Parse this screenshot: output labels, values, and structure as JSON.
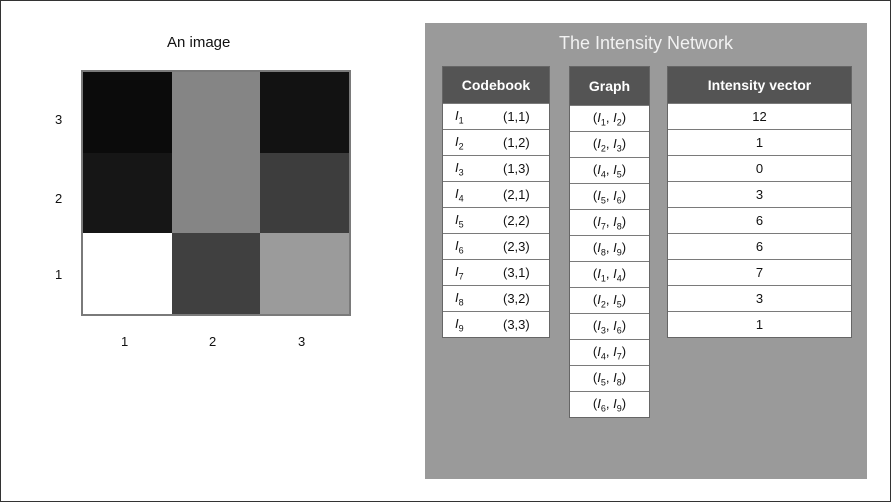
{
  "left": {
    "title": "An image",
    "y_labels": [
      "3",
      "2",
      "1"
    ],
    "x_labels": [
      "1",
      "2",
      "3"
    ],
    "cells": [
      {
        "row": 3,
        "col": 1,
        "color": "#0b0b0b"
      },
      {
        "row": 3,
        "col": 2,
        "color": "#858585"
      },
      {
        "row": 3,
        "col": 3,
        "color": "#121212"
      },
      {
        "row": 2,
        "col": 1,
        "color": "#161616"
      },
      {
        "row": 2,
        "col": 2,
        "color": "#858585"
      },
      {
        "row": 2,
        "col": 3,
        "color": "#3d3d3d"
      },
      {
        "row": 1,
        "col": 1,
        "color": "#ffffff"
      },
      {
        "row": 1,
        "col": 2,
        "color": "#404040"
      },
      {
        "row": 1,
        "col": 3,
        "color": "#9b9b9b"
      }
    ]
  },
  "panel": {
    "title": "The Intensity Network",
    "codebook": {
      "header": "Codebook",
      "rows": [
        {
          "sub": "1",
          "coord": "(1,1)"
        },
        {
          "sub": "2",
          "coord": "(1,2)"
        },
        {
          "sub": "3",
          "coord": "(1,3)"
        },
        {
          "sub": "4",
          "coord": "(2,1)"
        },
        {
          "sub": "5",
          "coord": "(2,2)"
        },
        {
          "sub": "6",
          "coord": "(2,3)"
        },
        {
          "sub": "7",
          "coord": "(3,1)"
        },
        {
          "sub": "8",
          "coord": "(3,2)"
        },
        {
          "sub": "9",
          "coord": "(3,3)"
        }
      ]
    },
    "graph": {
      "header": "Graph",
      "edges": [
        [
          "1",
          "2"
        ],
        [
          "2",
          "3"
        ],
        [
          "4",
          "5"
        ],
        [
          "5",
          "6"
        ],
        [
          "7",
          "8"
        ],
        [
          "8",
          "9"
        ],
        [
          "1",
          "4"
        ],
        [
          "2",
          "5"
        ],
        [
          "3",
          "6"
        ],
        [
          "4",
          "7"
        ],
        [
          "5",
          "8"
        ],
        [
          "6",
          "9"
        ]
      ]
    },
    "intensity": {
      "header": "Intensity vector",
      "values": [
        "12",
        "1",
        "0",
        "3",
        "6",
        "6",
        "7",
        "3",
        "1"
      ]
    }
  }
}
